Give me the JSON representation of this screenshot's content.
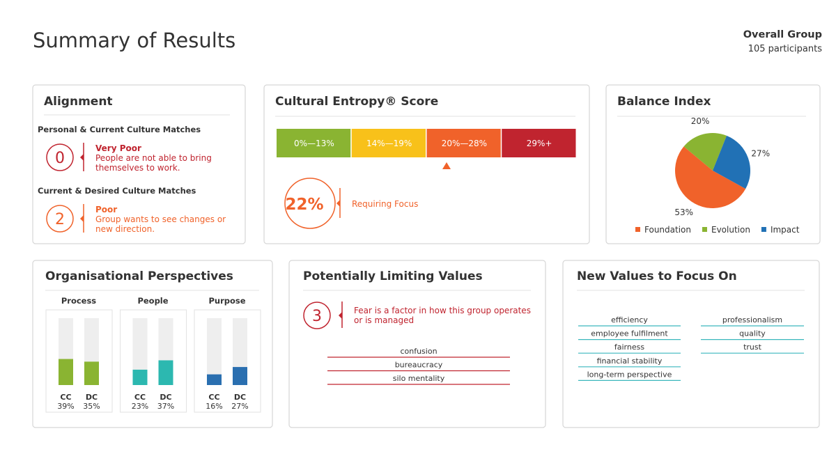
{
  "header": {
    "title": "Summary of Results",
    "group": "Overall Group",
    "participants": "105 participants"
  },
  "alignment": {
    "title": "Alignment",
    "items": [
      {
        "heading": "Personal & Current Culture Matches",
        "score": "0",
        "level": "Very Poor",
        "description": "People are not able to bring themselves to work.",
        "color": "#c0242f"
      },
      {
        "heading": "Current & Desired Culture Matches",
        "score": "2",
        "level": "Poor",
        "description": "Group wants to see changes or new direction.",
        "color": "#f0622a"
      }
    ]
  },
  "entropy": {
    "title": "Cultural Entropy® Score",
    "bands": [
      "0%—13%",
      "14%—19%",
      "20%—28%",
      "29%+"
    ],
    "band_colors": [
      "#8ab432",
      "#f8c11a",
      "#f0622a",
      "#c0242f"
    ],
    "score": "22%",
    "status": "Requiring Focus"
  },
  "balance": {
    "title": "Balance Index",
    "type": "pie",
    "categories": [
      "Foundation",
      "Evolution",
      "Impact"
    ],
    "values": [
      53,
      20,
      27
    ],
    "value_labels": [
      "53%",
      "20%",
      "27%"
    ],
    "colors": [
      "#f0622a",
      "#8ab432",
      "#2171b5"
    ]
  },
  "perspectives": {
    "title": "Organisational Perspectives",
    "type": "bar",
    "ylim": [
      0,
      100
    ],
    "groups": [
      {
        "name": "Process",
        "color": "#8ab432",
        "categories": [
          "CC",
          "DC"
        ],
        "values": [
          39,
          35
        ],
        "value_labels": [
          "39%",
          "35%"
        ]
      },
      {
        "name": "People",
        "color": "#2cb8b0",
        "categories": [
          "CC",
          "DC"
        ],
        "values": [
          23,
          37
        ],
        "value_labels": [
          "23%",
          "37%"
        ]
      },
      {
        "name": "Purpose",
        "color": "#2a6fb0",
        "categories": [
          "CC",
          "DC"
        ],
        "values": [
          16,
          27
        ],
        "value_labels": [
          "16%",
          "27%"
        ]
      }
    ]
  },
  "limiting": {
    "title": "Potentially Limiting Values",
    "count": "3",
    "description": "Fear is a factor in how this group operates or is managed",
    "values": [
      "confusion",
      "bureaucracy",
      "silo mentality"
    ]
  },
  "new_values": {
    "title": "New Values to Focus On",
    "columns": [
      [
        "efficiency",
        "employee fulfilment",
        "fairness",
        "financial stability",
        "long-term perspective"
      ],
      [
        "professionalism",
        "quality",
        "trust"
      ]
    ]
  }
}
